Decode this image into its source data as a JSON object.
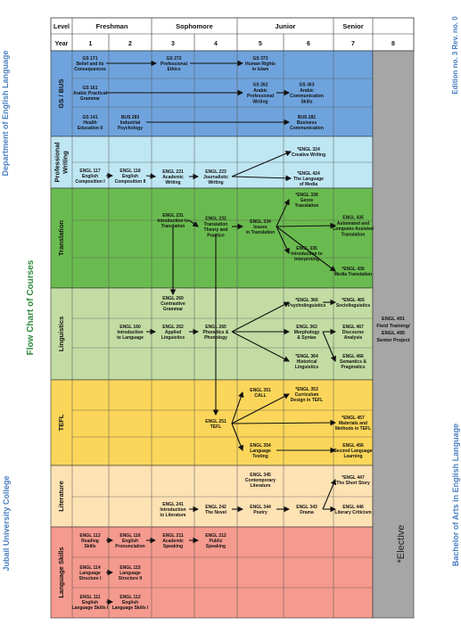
{
  "side": {
    "department": "Department of English Language",
    "college": "Jubail University College",
    "program": "Bachelor of Arts in English Language",
    "edition": "Edition no. 3    Rev. no. 0",
    "flow_title": "Flow Chart of Courses",
    "elective_note": "*Elective"
  },
  "header": {
    "level_label": "Level",
    "year_label": "Year",
    "levels": [
      "Freshman",
      "Sophomore",
      "Junior",
      "Senior"
    ],
    "years": [
      "1",
      "2",
      "3",
      "4",
      "5",
      "6",
      "7",
      "8"
    ]
  },
  "bands": [
    {
      "label": "GS / BUS",
      "color": "#6fa3dd"
    },
    {
      "label": "Professional Writing",
      "color": "#bfe6f3"
    },
    {
      "label": "Translation",
      "color": "#6abb4f"
    },
    {
      "label": "Linguistics",
      "color": "#c2dca3"
    },
    {
      "label": "TEFL",
      "color": "#fbd65a"
    },
    {
      "label": "Literature",
      "color": "#fde2b4"
    },
    {
      "label": "Language Skills",
      "color": "#f59a8e"
    }
  ],
  "col8_note": {
    "line1": "ENGL 491",
    "line2": "Field Training/",
    "line3": "ENGL 495",
    "line4": "Senior Project"
  },
  "courses": {
    "gs171": [
      "GS 171",
      "Belief and its",
      "Consequences"
    ],
    "gs272": [
      "GS 272",
      "Professional",
      "Ethics"
    ],
    "gs373": [
      "GS 373",
      "Human Rights",
      "in Islam"
    ],
    "gs161": [
      "GS 161",
      "Arabic Practical",
      "Grammar"
    ],
    "gs262": [
      "GS 262",
      "Arabic",
      "Professional",
      "Writing"
    ],
    "gs363": [
      "GS 363",
      "Arabic",
      "Communication",
      "Skills"
    ],
    "gs141": [
      "GS 141",
      "Health",
      "Education II"
    ],
    "bus283": [
      "BUS 283",
      "Industrial",
      "Psychology"
    ],
    "bus281": [
      "BUS 281",
      "Business",
      "Communication"
    ],
    "e324": [
      "*ENGL 324",
      "Creative Writing"
    ],
    "e117": [
      "ENGL 117",
      "English",
      "Composition I"
    ],
    "e118": [
      "ENGL 118",
      "English",
      "Composition II"
    ],
    "e221": [
      "ENGL 221",
      "Academic",
      "Writing"
    ],
    "e223": [
      "ENGL 223",
      "Journalistic",
      "Writing"
    ],
    "e424": [
      "*ENGL 424",
      "The Language",
      "of Media"
    ],
    "e336": [
      "*ENGL 336",
      "Genre",
      "Translation"
    ],
    "e231": [
      "ENGL 231",
      "Introduction to",
      "Translation"
    ],
    "e232": [
      "ENGL 232",
      "Translation",
      "Theory and",
      "Practice"
    ],
    "e334": [
      "ENGL 334",
      "Issues",
      "in Translation"
    ],
    "e435": [
      "ENGL 435",
      "Automated and",
      "Computer-Assisted",
      "Translation"
    ],
    "e335": [
      "ENGL 335",
      "Introduction to",
      "Interpreting"
    ],
    "e436": [
      "*ENGL 436",
      "Media Translation"
    ],
    "e260": [
      "ENGL 260",
      "Contrastive",
      "Grammar"
    ],
    "e366": [
      "*ENGL 366",
      "Psycholinguistics"
    ],
    "e465": [
      "*ENGL 465",
      "Sociolinguistics"
    ],
    "e160": [
      "ENGL 160",
      "Introduction",
      "to Language"
    ],
    "e262": [
      "ENGL 262",
      "Applied",
      "Linguistics"
    ],
    "e265": [
      "ENGL 265",
      "Phonetics &",
      "Phonology"
    ],
    "e363": [
      "ENGL 363",
      "Morphology",
      "& Syntax"
    ],
    "e467": [
      "ENGL 467",
      "Discourse",
      "Analysis"
    ],
    "e364": [
      "*ENGL 364",
      "Historical",
      "Linguistics"
    ],
    "e466": [
      "ENGL 466",
      "Semantics &",
      "Pragmatics"
    ],
    "e351": [
      "ENGL 351",
      "CALL"
    ],
    "e353": [
      "*ENGL 353",
      "Curriculum",
      "Design in TEFL"
    ],
    "e251": [
      "ENGL 251",
      "TEFL"
    ],
    "e457": [
      "*ENGL 457",
      "Materials and",
      "Methods in TEFL"
    ],
    "e354": [
      "ENGL 354",
      "Language",
      "Testing"
    ],
    "e456": [
      "ENGL 456",
      "Second Language",
      "Learning"
    ],
    "e345": [
      "ENGL 345",
      "Contemporary",
      "Literature"
    ],
    "e447": [
      "*ENGL 447",
      "The Short Story"
    ],
    "e241": [
      "ENGL 241",
      "Introduction",
      "to Literature"
    ],
    "e242": [
      "ENGL 242",
      "The Novel"
    ],
    "e344": [
      "ENGL 344",
      "Poetry"
    ],
    "e343": [
      "ENGL 343",
      "Drama"
    ],
    "e446": [
      "ENGL 446",
      "Literary Criticism"
    ],
    "e113": [
      "ENGL 113",
      "Reading",
      "Skills"
    ],
    "e116": [
      "ENGL 116",
      "English",
      "Pronunciation"
    ],
    "e211": [
      "ENGL 211",
      "Academic",
      "Speaking"
    ],
    "e212": [
      "ENGL 212",
      "Public",
      "Speaking"
    ],
    "e114": [
      "ENGL 114",
      "Language",
      "Structure I"
    ],
    "e115": [
      "ENGL 115",
      "Language",
      "Structure II"
    ],
    "e111": [
      "ENGL 111",
      "English",
      "Language Skills I"
    ],
    "e112": [
      "ENGL 112",
      "English",
      "Language Skills I"
    ]
  },
  "prerequisites": [
    [
      "gs171",
      "gs272"
    ],
    [
      "gs272",
      "gs373"
    ],
    [
      "gs161",
      "gs262"
    ],
    [
      "gs262",
      "gs363"
    ],
    [
      "bus283",
      "bus281"
    ],
    [
      "e117",
      "e118"
    ],
    [
      "e118",
      "e221"
    ],
    [
      "e221",
      "e223"
    ],
    [
      "e223",
      "e324"
    ],
    [
      "e223",
      "e424"
    ],
    [
      "e231",
      "e232"
    ],
    [
      "e232",
      "e334"
    ],
    [
      "e334",
      "e336"
    ],
    [
      "e334",
      "e435"
    ],
    [
      "e334",
      "e335"
    ],
    [
      "e334",
      "e436"
    ],
    [
      "e160",
      "e262"
    ],
    [
      "e262",
      "e265"
    ],
    [
      "e265",
      "e366"
    ],
    [
      "e265",
      "e363"
    ],
    [
      "e265",
      "e364"
    ],
    [
      "e363",
      "e467"
    ],
    [
      "e363",
      "e466"
    ],
    [
      "e366",
      "e465"
    ],
    [
      "e251",
      "e351"
    ],
    [
      "e251",
      "e353"
    ],
    [
      "e251",
      "e457"
    ],
    [
      "e251",
      "e354"
    ],
    [
      "e354",
      "e456"
    ],
    [
      "e241",
      "e242"
    ],
    [
      "e242",
      "e344"
    ],
    [
      "e344",
      "e343"
    ],
    [
      "e343",
      "e447"
    ],
    [
      "e343",
      "e446"
    ],
    [
      "e113",
      "e116"
    ],
    [
      "e116",
      "e211"
    ],
    [
      "e211",
      "e212"
    ],
    [
      "e114",
      "e115"
    ],
    [
      "e111",
      "e112"
    ]
  ]
}
